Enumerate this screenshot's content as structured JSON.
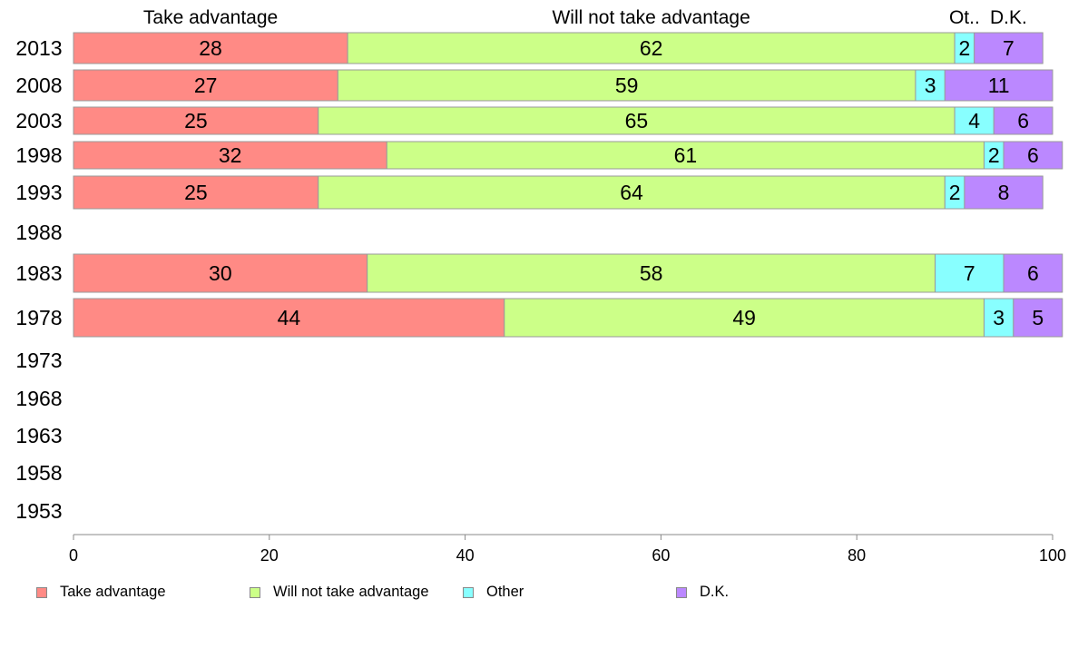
{
  "chart_data": {
    "type": "bar",
    "orientation": "horizontal-stacked",
    "categories": [
      "2013",
      "2008",
      "2003",
      "1998",
      "1993",
      "1988",
      "1983",
      "1978",
      "1973",
      "1968",
      "1963",
      "1958",
      "1953"
    ],
    "series": [
      {
        "name": "Take advantage",
        "color": "#ff8a85",
        "values": [
          28,
          27,
          25,
          32,
          25,
          null,
          30,
          44,
          null,
          null,
          null,
          null,
          null
        ]
      },
      {
        "name": "Will not take advantage",
        "color": "#ccff88",
        "values": [
          62,
          59,
          65,
          61,
          64,
          null,
          58,
          49,
          null,
          null,
          null,
          null,
          null
        ]
      },
      {
        "name": "Other",
        "color": "#88ffff",
        "values": [
          2,
          3,
          4,
          2,
          2,
          null,
          7,
          3,
          null,
          null,
          null,
          null,
          null
        ]
      },
      {
        "name": "D.K.",
        "color": "#bb88ff",
        "values": [
          7,
          11,
          6,
          6,
          8,
          null,
          6,
          5,
          null,
          null,
          null,
          null,
          null
        ]
      }
    ],
    "top_labels": [
      "Take advantage",
      "Will not take advantage",
      "Ot..",
      "D.K."
    ],
    "xlim": [
      0,
      100
    ],
    "xticks": [
      0,
      20,
      40,
      60,
      80,
      100
    ],
    "grid": false,
    "legend_position": "bottom"
  }
}
